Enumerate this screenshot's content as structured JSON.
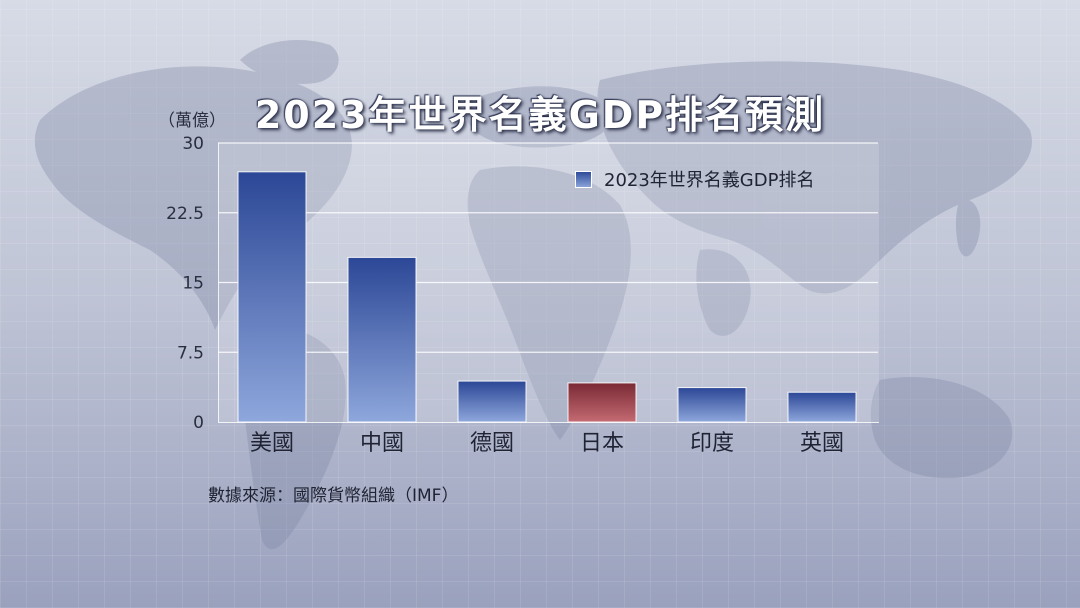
{
  "title": "2023年世界名義GDP排名預測",
  "source": "數據來源：國際貨幣組織（IMF）",
  "colors": {
    "bar_top": "#2c4796",
    "bar_bottom": "#8ea7dc",
    "highlight_top": "#7a2a35",
    "highlight_bottom": "#c46a72"
  },
  "chart_data": {
    "type": "bar",
    "title": "2023年世界名義GDP排名預測",
    "ylabel": "（萬億）",
    "xlabel": "",
    "ylim": [
      0,
      30
    ],
    "yticks": [
      "0",
      "7.5",
      "15",
      "22.5",
      "30"
    ],
    "grid": true,
    "legend_position": "top-right",
    "categories": [
      "美國",
      "中國",
      "德國",
      "日本",
      "印度",
      "英國"
    ],
    "series": [
      {
        "name": "2023年世界名義GDP排名",
        "values": [
          26.9,
          17.7,
          4.4,
          4.2,
          3.7,
          3.2
        ]
      }
    ],
    "highlight_category": "日本"
  }
}
